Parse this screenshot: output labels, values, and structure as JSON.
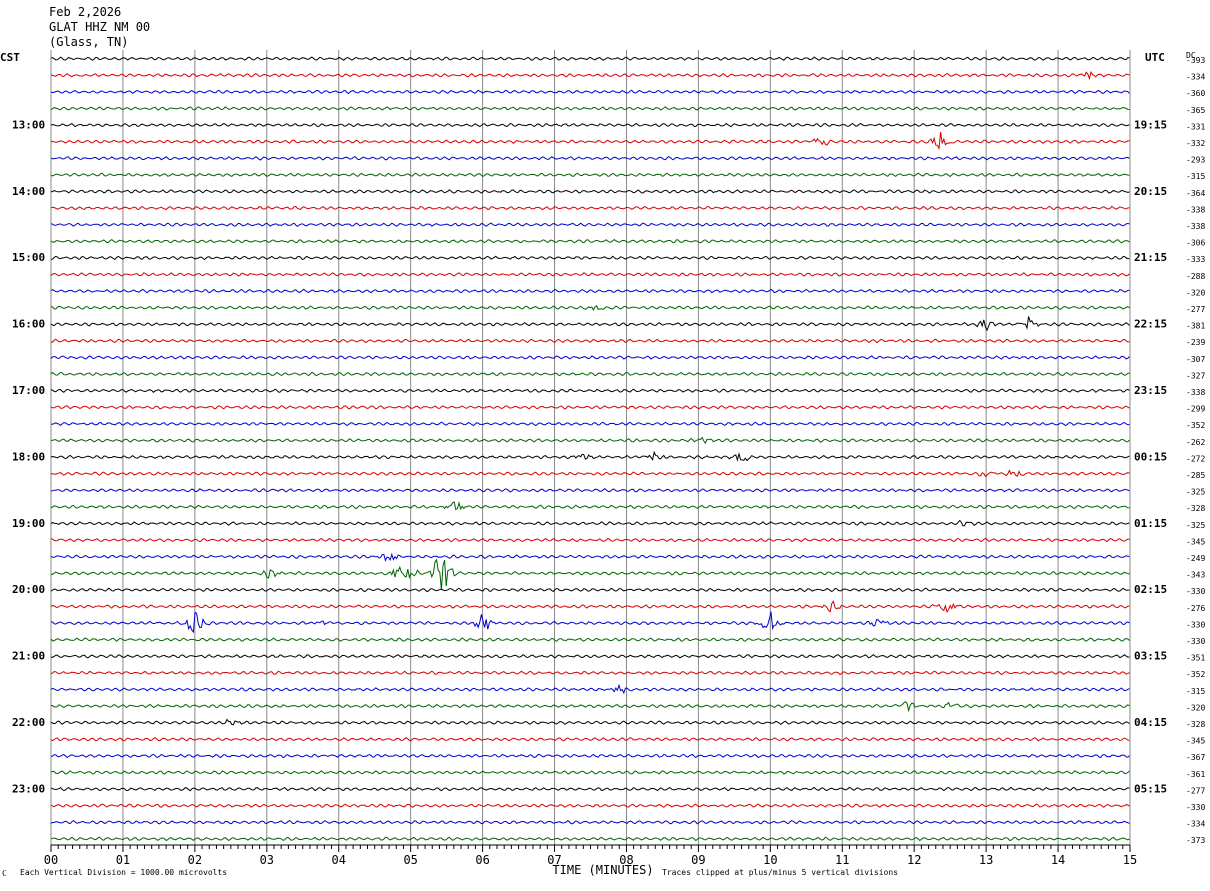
{
  "header": {
    "date": "Feb 2,2026",
    "station": "GLAT HHZ NM 00",
    "location": "(Glass, TN)"
  },
  "left_tz": "CST",
  "right_tz": "UTC",
  "dc_header": "DC",
  "footer": {
    "scale_note": "Each Vertical Division = 1000.00 microvolts",
    "clip_note": "Traces clipped at plus/minus 5 vertical divisions",
    "marker": "ℂ"
  },
  "colors": {
    "trace_cycle": [
      "#000000",
      "#d40000",
      "#0000cc",
      "#006400"
    ],
    "grid": "#888888"
  },
  "chart_data": {
    "type": "line",
    "title": "",
    "xlabel": "TIME (MINUTES)",
    "ylabel": "",
    "xlim": [
      0,
      15
    ],
    "x_ticks": [
      "00",
      "01",
      "02",
      "03",
      "04",
      "05",
      "06",
      "07",
      "08",
      "09",
      "10",
      "11",
      "12",
      "13",
      "14",
      "15"
    ],
    "grid": true,
    "rows_per_hour": 4,
    "left_hour_labels": [
      "13:00",
      "14:00",
      "15:00",
      "16:00",
      "17:00",
      "18:00",
      "19:00",
      "20:00",
      "21:00",
      "22:00",
      "23:00"
    ],
    "right_hour_labels": [
      "19:15",
      "20:15",
      "21:15",
      "22:15",
      "23:15",
      "00:15",
      "01:15",
      "02:15",
      "03:15",
      "04:15",
      "05:15"
    ],
    "dc_offsets": [
      "393",
      "334",
      "360",
      "365",
      "331",
      "332",
      "293",
      "315",
      "364",
      "338",
      "338",
      "306",
      "333",
      "288",
      "320",
      "277",
      "381",
      "239",
      "307",
      "327",
      "338",
      "299",
      "352",
      "262",
      "272",
      "285",
      "325",
      "328",
      "325",
      "345",
      "249",
      "343",
      "330",
      "276",
      "330",
      "330",
      "351",
      "352",
      "315",
      "320",
      "328",
      "345",
      "367",
      "361",
      "277",
      "330",
      "334",
      "373"
    ],
    "trace_colors": [
      "black",
      "red",
      "blue",
      "green"
    ],
    "events": [
      {
        "row": 1,
        "minute": 14.4,
        "amp": 1.2
      },
      {
        "row": 5,
        "minute": 10.7,
        "amp": 1.2
      },
      {
        "row": 5,
        "minute": 12.35,
        "amp": 3.0
      },
      {
        "row": 15,
        "minute": 7.6,
        "amp": 0.8
      },
      {
        "row": 16,
        "minute": 13.0,
        "amp": 1.6
      },
      {
        "row": 16,
        "minute": 13.6,
        "amp": 1.8
      },
      {
        "row": 23,
        "minute": 9.05,
        "amp": 1.0
      },
      {
        "row": 24,
        "minute": 7.4,
        "amp": 1.0
      },
      {
        "row": 24,
        "minute": 8.4,
        "amp": 1.3
      },
      {
        "row": 24,
        "minute": 9.6,
        "amp": 1.4
      },
      {
        "row": 25,
        "minute": 13.0,
        "amp": 1.1
      },
      {
        "row": 25,
        "minute": 13.4,
        "amp": 1.3
      },
      {
        "row": 27,
        "minute": 5.6,
        "amp": 1.5
      },
      {
        "row": 28,
        "minute": 12.7,
        "amp": 1.0
      },
      {
        "row": 30,
        "minute": 4.7,
        "amp": 1.4
      },
      {
        "row": 31,
        "minute": 3.05,
        "amp": 1.5
      },
      {
        "row": 31,
        "minute": 4.8,
        "amp": 1.8
      },
      {
        "row": 31,
        "minute": 4.95,
        "amp": 4.0
      },
      {
        "row": 31,
        "minute": 5.35,
        "amp": 3.5
      },
      {
        "row": 31,
        "minute": 5.45,
        "amp": 4.5
      },
      {
        "row": 33,
        "minute": 10.85,
        "amp": 1.3
      },
      {
        "row": 33,
        "minute": 12.45,
        "amp": 2.0
      },
      {
        "row": 34,
        "minute": 2.0,
        "amp": 3.0
      },
      {
        "row": 34,
        "minute": 3.8,
        "amp": 1.3
      },
      {
        "row": 34,
        "minute": 6.0,
        "amp": 2.6
      },
      {
        "row": 34,
        "minute": 10.0,
        "amp": 3.2
      },
      {
        "row": 34,
        "minute": 11.5,
        "amp": 1.2
      },
      {
        "row": 38,
        "minute": 7.9,
        "amp": 1.0
      },
      {
        "row": 39,
        "minute": 11.9,
        "amp": 1.2
      },
      {
        "row": 39,
        "minute": 12.5,
        "amp": 1.0
      },
      {
        "row": 40,
        "minute": 2.5,
        "amp": 1.0
      }
    ]
  }
}
